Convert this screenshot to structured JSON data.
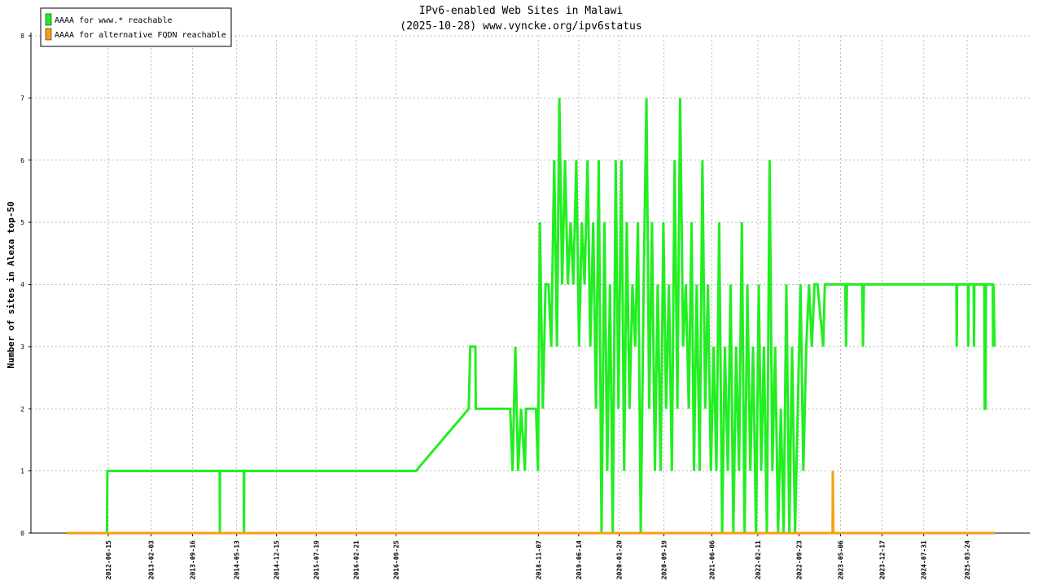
{
  "chart_data": {
    "type": "line",
    "title": "IPv6-enabled Web Sites in Malawi",
    "subtitle": "(2025-10-28) www.vyncke.org/ipv6status",
    "ylabel": "Number of sites in Alexa top-50",
    "xlim": [
      "2011-04-22",
      "2026-02-27"
    ],
    "ylim": [
      0,
      8
    ],
    "yticks": [
      0,
      1,
      2,
      3,
      4,
      5,
      6,
      7,
      8
    ],
    "xticks": [
      "2012-06-15",
      "2013-02-03",
      "2013-09-16",
      "2014-05-13",
      "2014-12-15",
      "2015-07-19",
      "2016-02-21",
      "2016-09-25",
      "2018-11-07",
      "2019-06-14",
      "2020-01-20",
      "2020-09-19",
      "2021-06-06",
      "2022-02-11",
      "2022-09-23",
      "2023-05-06",
      "2023-12-17",
      "2024-07-31",
      "2025-03-24"
    ],
    "grid": true,
    "legend": "upper left",
    "series": [
      {
        "name": "AAAA for www.* reachable",
        "color": "#22ee22",
        "x": [
          "2011-11-03",
          "2012-06-08",
          "2012-06-10",
          "2014-02-10",
          "2014-02-11",
          "2014-02-12",
          "2014-06-21",
          "2014-06-22",
          "2014-06-23",
          "2017-01-11",
          "2017-10-25",
          "2017-11-02",
          "2017-11-30",
          "2017-12-02",
          "2018-06-07",
          "2018-06-20",
          "2018-07-05",
          "2018-07-20",
          "2018-08-05",
          "2018-08-26",
          "2018-09-01",
          "2018-10-25",
          "2018-11-05",
          "2018-11-15",
          "2018-12-01",
          "2018-12-16",
          "2019-01-01",
          "2019-01-16",
          "2019-02-01",
          "2019-02-16",
          "2019-03-01",
          "2019-03-16",
          "2019-04-01",
          "2019-04-16",
          "2019-05-01",
          "2019-05-16",
          "2019-06-01",
          "2019-06-16",
          "2019-07-01",
          "2019-07-16",
          "2019-08-01",
          "2019-08-16",
          "2019-09-01",
          "2019-09-16",
          "2019-10-01",
          "2019-10-16",
          "2019-11-01",
          "2019-11-16",
          "2019-12-01",
          "2019-12-16",
          "2020-01-01",
          "2020-01-16",
          "2020-02-01",
          "2020-02-16",
          "2020-03-01",
          "2020-03-16",
          "2020-04-01",
          "2020-04-16",
          "2020-05-01",
          "2020-05-16",
          "2020-06-01",
          "2020-06-16",
          "2020-07-01",
          "2020-07-16",
          "2020-08-01",
          "2020-08-16",
          "2020-09-01",
          "2020-09-16",
          "2020-10-01",
          "2020-10-16",
          "2020-11-01",
          "2020-11-16",
          "2020-12-01",
          "2020-12-16",
          "2021-01-01",
          "2021-01-16",
          "2021-02-01",
          "2021-02-16",
          "2021-03-01",
          "2021-03-16",
          "2021-04-01",
          "2021-04-16",
          "2021-05-01",
          "2021-05-16",
          "2021-06-01",
          "2021-06-16",
          "2021-07-01",
          "2021-07-16",
          "2021-08-01",
          "2021-08-16",
          "2021-09-01",
          "2021-09-16",
          "2021-10-01",
          "2021-10-16",
          "2021-11-01",
          "2021-11-16",
          "2021-12-01",
          "2021-12-16",
          "2022-01-01",
          "2022-01-16",
          "2022-02-01",
          "2022-02-16",
          "2022-03-01",
          "2022-03-16",
          "2022-04-01",
          "2022-04-16",
          "2022-05-01",
          "2022-05-16",
          "2022-06-01",
          "2022-06-16",
          "2022-07-01",
          "2022-07-16",
          "2022-08-01",
          "2022-08-16",
          "2022-09-01",
          "2022-09-16",
          "2022-10-01",
          "2022-10-16",
          "2022-11-01",
          "2022-11-16",
          "2022-12-01",
          "2022-12-16",
          "2023-01-01",
          "2023-02-01",
          "2023-02-10",
          "2023-06-01",
          "2023-06-05",
          "2023-06-10",
          "2023-09-01",
          "2023-09-05",
          "2023-09-10",
          "2025-01-24",
          "2025-01-26",
          "2025-01-28",
          "2025-03-28",
          "2025-03-30",
          "2025-04-01",
          "2025-04-28",
          "2025-04-30",
          "2025-05-02",
          "2025-06-25",
          "2025-06-27",
          "2025-07-02",
          "2025-07-04",
          "2025-08-10",
          "2025-08-12",
          "2025-08-14",
          "2025-08-20"
        ],
        "values": [
          0,
          0,
          1,
          1,
          0,
          1,
          1,
          0,
          1,
          1,
          2,
          3,
          3,
          2,
          2,
          1,
          3,
          1,
          2,
          1,
          2,
          2,
          1,
          5,
          2,
          4,
          4,
          3,
          6,
          3,
          7,
          4,
          6,
          4,
          5,
          4,
          6,
          3,
          5,
          4,
          6,
          3,
          5,
          2,
          6,
          0,
          5,
          1,
          4,
          0,
          6,
          2,
          6,
          1,
          5,
          2,
          4,
          3,
          5,
          0,
          4,
          7,
          2,
          5,
          1,
          4,
          1,
          5,
          2,
          4,
          1,
          6,
          2,
          7,
          3,
          4,
          2,
          5,
          1,
          4,
          1,
          6,
          2,
          4,
          1,
          3,
          1,
          5,
          0,
          3,
          1,
          4,
          0,
          3,
          1,
          5,
          0,
          4,
          1,
          3,
          0,
          4,
          1,
          3,
          0,
          6,
          1,
          3,
          0,
          2,
          0,
          4,
          0,
          3,
          0,
          2,
          4,
          1,
          3,
          4,
          3,
          4,
          4,
          3,
          4,
          4,
          3,
          4,
          4,
          3,
          4,
          4,
          3,
          4,
          4,
          3,
          4,
          4,
          3,
          4,
          4,
          2,
          2,
          4,
          4,
          3,
          4,
          3
        ]
      },
      {
        "name": "AAAA for alternative FQDN reachable",
        "color": "#f5a010",
        "x": [
          "2011-11-03",
          "2023-03-24",
          "2023-03-25",
          "2023-03-28",
          "2025-08-20"
        ],
        "values": [
          0,
          0,
          1,
          0,
          0
        ]
      }
    ]
  }
}
